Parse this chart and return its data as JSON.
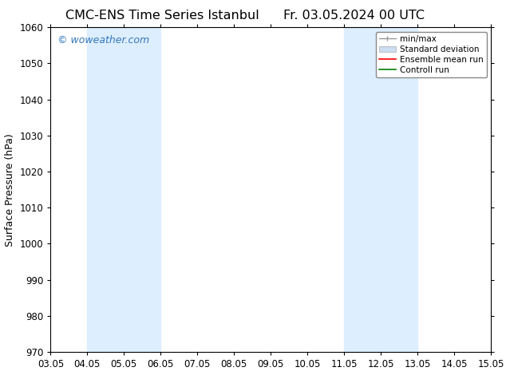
{
  "title_left": "CMC-ENS Time Series Istanbul",
  "title_right": "Fr. 03.05.2024 00 UTC",
  "ylabel": "Surface Pressure (hPa)",
  "xlim": [
    0,
    12
  ],
  "ylim": [
    970,
    1060
  ],
  "yticks": [
    970,
    980,
    990,
    1000,
    1010,
    1020,
    1030,
    1040,
    1050,
    1060
  ],
  "xtick_labels": [
    "03.05",
    "04.05",
    "05.05",
    "06.05",
    "07.05",
    "08.05",
    "09.05",
    "10.05",
    "11.05",
    "12.05",
    "13.05",
    "14.05",
    "15.05"
  ],
  "xtick_positions": [
    0,
    1,
    2,
    3,
    4,
    5,
    6,
    7,
    8,
    9,
    10,
    11,
    12
  ],
  "shaded_regions": [
    {
      "xmin": 1,
      "xmax": 3,
      "color": "#ddeeff"
    },
    {
      "xmin": 8,
      "xmax": 10,
      "color": "#ddeeff"
    }
  ],
  "watermark_text": "© woweather.com",
  "watermark_color": "#3377bb",
  "legend_items": [
    {
      "label": "min/max",
      "color": "#999999",
      "lw": 1.0,
      "ls": "-",
      "type": "line_caps"
    },
    {
      "label": "Standard deviation",
      "color": "#ccddf0",
      "lw": 6,
      "ls": "-",
      "type": "patch"
    },
    {
      "label": "Ensemble mean run",
      "color": "red",
      "lw": 1.2,
      "ls": "-",
      "type": "line"
    },
    {
      "label": "Controll run",
      "color": "green",
      "lw": 1.2,
      "ls": "-",
      "type": "line"
    }
  ],
  "background_color": "#ffffff",
  "title_fontsize": 11.5,
  "axis_label_fontsize": 9,
  "tick_fontsize": 8.5,
  "watermark_fontsize": 9
}
